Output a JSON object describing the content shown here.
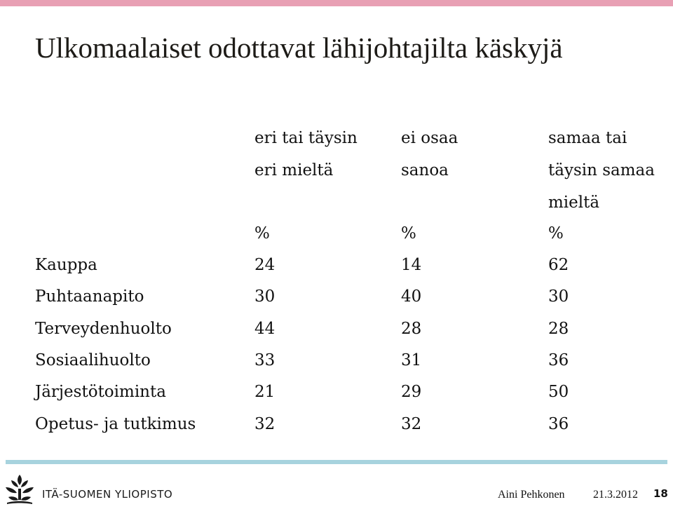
{
  "slide": {
    "title": "Ulkomaalaiset odottavat lähijohtajilta käskyjä",
    "accent_color": "#e8a0b4",
    "footer_bar_color": "#a7d3de"
  },
  "table": {
    "headers": {
      "col1": [
        "eri tai täysin",
        "eri mieltä"
      ],
      "col2": [
        "ei osaa",
        "sanoa"
      ],
      "col3": [
        "samaa tai",
        "täysin  samaa",
        "mieltä"
      ]
    },
    "units": [
      "%",
      "%",
      "%"
    ],
    "rows": [
      {
        "label": "Kauppa",
        "values": [
          "24",
          "14",
          "62"
        ]
      },
      {
        "label": "Puhtaanapito",
        "values": [
          "30",
          "40",
          "30"
        ]
      },
      {
        "label": "Terveydenhuolto",
        "values": [
          "44",
          "28",
          "28"
        ]
      },
      {
        "label": "Sosiaalihuolto",
        "values": [
          "33",
          "31",
          "36"
        ]
      },
      {
        "label": "Järjestötoiminta",
        "values": [
          "21",
          "29",
          "50"
        ]
      },
      {
        "label": "Opetus- ja tutkimus",
        "values": [
          "32",
          "32",
          "36"
        ]
      }
    ]
  },
  "footer": {
    "logo_text": "ITÄ-SUOMEN YLIOPISTO",
    "logo_icon": "university-tree-logo-icon",
    "author": "Aini Pehkonen",
    "date": "21.3.2012",
    "page_number": "18"
  }
}
